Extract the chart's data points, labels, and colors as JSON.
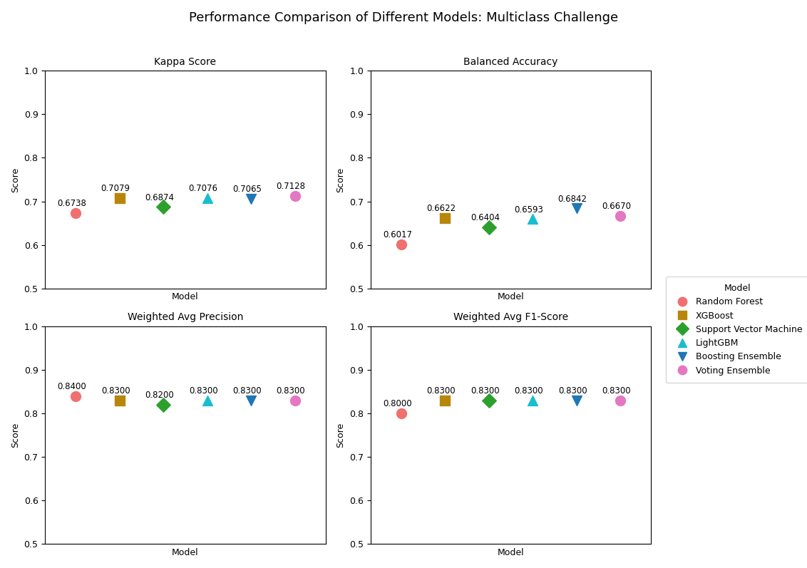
{
  "title": "Performance Comparison of Different Models: Multiclass Challenge",
  "subplots": [
    {
      "title": "Kappa Score",
      "ylabel": "Score",
      "xlabel": "Model",
      "ylim": [
        0.5,
        1.0
      ],
      "yticks": [
        0.5,
        0.6,
        0.7,
        0.8,
        0.9,
        1.0
      ],
      "values": [
        0.6738,
        0.7079,
        0.6874,
        0.7076,
        0.7065,
        0.7128
      ]
    },
    {
      "title": "Balanced Accuracy",
      "ylabel": "Score",
      "xlabel": "Model",
      "ylim": [
        0.5,
        1.0
      ],
      "yticks": [
        0.5,
        0.6,
        0.7,
        0.8,
        0.9,
        1.0
      ],
      "values": [
        0.6017,
        0.6622,
        0.6404,
        0.6593,
        0.6842,
        0.667
      ]
    },
    {
      "title": "Weighted Avg Precision",
      "ylabel": "Score",
      "xlabel": "Model",
      "ylim": [
        0.5,
        1.0
      ],
      "yticks": [
        0.5,
        0.6,
        0.7,
        0.8,
        0.9,
        1.0
      ],
      "values": [
        0.84,
        0.83,
        0.82,
        0.83,
        0.83,
        0.83
      ]
    },
    {
      "title": "Weighted Avg F1-Score",
      "ylabel": "Score",
      "xlabel": "Model",
      "ylim": [
        0.5,
        1.0
      ],
      "yticks": [
        0.5,
        0.6,
        0.7,
        0.8,
        0.9,
        1.0
      ],
      "values": [
        0.8,
        0.83,
        0.83,
        0.83,
        0.83,
        0.83
      ]
    }
  ],
  "models": [
    {
      "name": "Random Forest",
      "color": "#f07070",
      "marker": "o",
      "x": 1
    },
    {
      "name": "XGBoost",
      "color": "#b8860b",
      "marker": "s",
      "x": 2
    },
    {
      "name": "Support Vector Machine",
      "color": "#2ca02c",
      "marker": "D",
      "x": 3
    },
    {
      "name": "LightGBM",
      "color": "#17becf",
      "marker": "^",
      "x": 4
    },
    {
      "name": "Boosting Ensemble",
      "color": "#1f77b4",
      "marker": "v",
      "x": 5
    },
    {
      "name": "Voting Ensemble",
      "color": "#e377c2",
      "marker": "o",
      "x": 6
    }
  ],
  "marker_size": 100,
  "annotation_fontsize": 8.5,
  "title_fontsize": 13,
  "subplot_title_fontsize": 10,
  "axis_label_fontsize": 9,
  "legend_fontsize": 9,
  "legend_title_fontsize": 9
}
